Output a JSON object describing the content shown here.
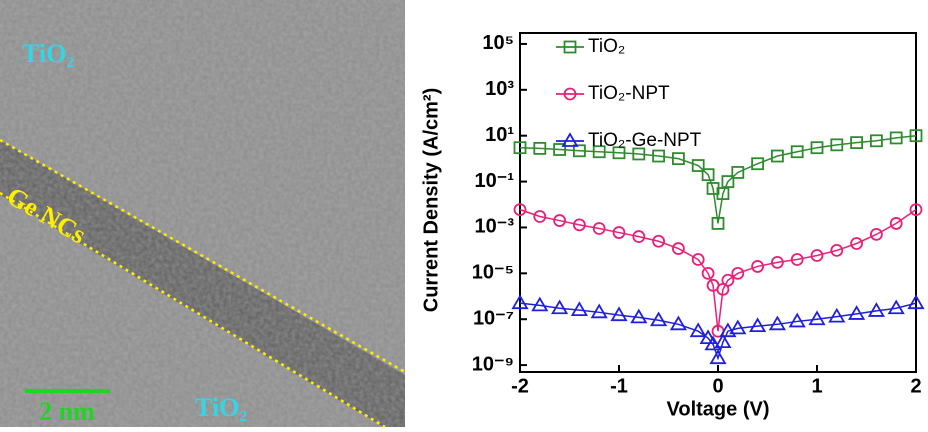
{
  "image": {
    "labels": [
      "TiO₂",
      "Ge NCs",
      "2 nm",
      "TiO₂"
    ]
  },
  "chart_data": {
    "type": "line",
    "log_y": true,
    "x_label": "Voltage (V)",
    "y_label": "Current Density (A/cm²)",
    "x": [
      -2,
      -1.8,
      -1.6,
      -1.4,
      -1.2,
      -1,
      -0.8,
      -0.6,
      -0.4,
      -0.2,
      -0.1,
      -0.05,
      0,
      0.05,
      0.1,
      0.2,
      0.4,
      0.6,
      0.8,
      1,
      1.2,
      1.4,
      1.6,
      1.8,
      2
    ],
    "series": [
      {
        "name": "TiO₂",
        "color": "#2e8b2e",
        "marker": "square",
        "values": [
          3,
          2.8,
          2.5,
          2.2,
          2,
          1.8,
          1.6,
          1.3,
          1,
          0.5,
          0.2,
          0.05,
          0.0015,
          0.03,
          0.1,
          0.25,
          0.6,
          1.3,
          2,
          3,
          4,
          5,
          6,
          8,
          10
        ]
      },
      {
        "name": "TiO₂-NPT",
        "color": "#e8207a",
        "marker": "circle",
        "values": [
          0.006,
          0.003,
          0.002,
          0.0013,
          0.0009,
          0.0006,
          0.0004,
          0.00025,
          0.00012,
          4e-05,
          1e-05,
          3e-06,
          3e-08,
          2e-06,
          5e-06,
          1e-05,
          2e-05,
          3e-05,
          4e-05,
          6e-05,
          0.0001,
          0.0002,
          0.0005,
          0.0015,
          0.006
        ]
      },
      {
        "name": "TiO₂-Ge-NPT",
        "color": "#1f1fdd",
        "marker": "triangle",
        "values": [
          5e-07,
          4e-07,
          3e-07,
          2.5e-07,
          2e-07,
          1.5e-07,
          1.2e-07,
          9e-08,
          6e-08,
          3e-08,
          1.5e-08,
          8e-09,
          2e-09,
          1e-08,
          3e-08,
          4e-08,
          5e-08,
          6e-08,
          8e-08,
          1e-07,
          1.3e-07,
          1.7e-07,
          2.3e-07,
          3e-07,
          5e-07
        ]
      }
    ],
    "xlim": [
      -2,
      2
    ],
    "xticks": [
      -2,
      -1,
      0,
      1,
      2
    ],
    "ylim": [
      5e-10,
      300000
    ],
    "yticks": [
      {
        "value": 1e-09,
        "label": "10⁻⁹"
      },
      {
        "value": 1e-07,
        "label": "10⁻⁷"
      },
      {
        "value": 1e-05,
        "label": "10⁻⁵"
      },
      {
        "value": 0.001,
        "label": "10⁻³"
      },
      {
        "value": 0.1,
        "label": "10⁻¹"
      },
      {
        "value": 10,
        "label": "10¹"
      },
      {
        "value": 1000,
        "label": "10³"
      },
      {
        "value": 100000,
        "label": "10⁵"
      }
    ],
    "legend": "top-left"
  }
}
